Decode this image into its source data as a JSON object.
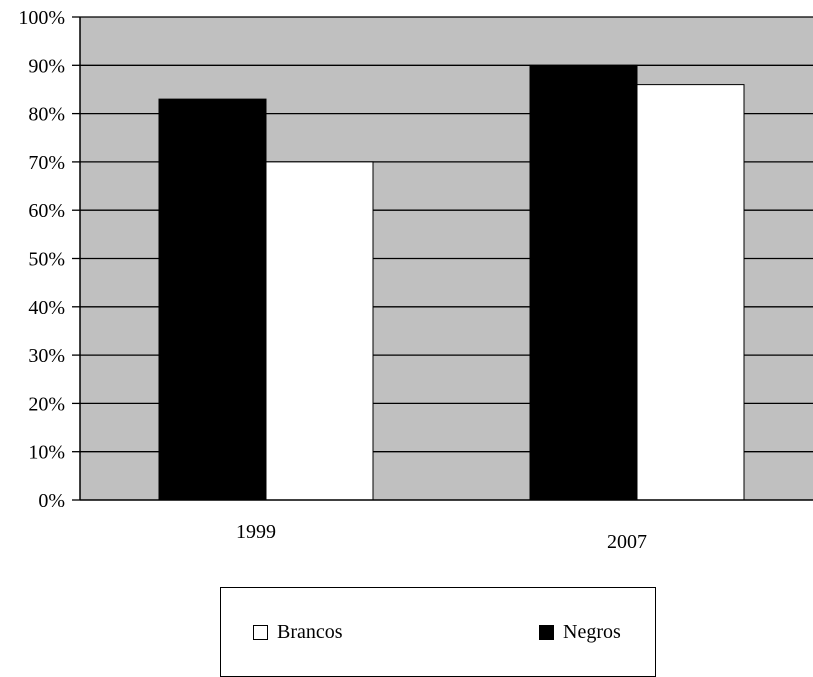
{
  "chart_data": {
    "type": "bar",
    "title": "",
    "xlabel": "",
    "ylabel": "",
    "categories": [
      "1999",
      "2007"
    ],
    "series": [
      {
        "name": "Negros",
        "values": [
          83,
          90
        ],
        "color": "#000000"
      },
      {
        "name": "Brancos",
        "values": [
          70,
          86
        ],
        "color": "#ffffff"
      }
    ],
    "ylim": [
      0,
      100
    ],
    "yticks": [
      "0%",
      "10%",
      "20%",
      "30%",
      "40%",
      "50%",
      "60%",
      "70%",
      "80%",
      "90%",
      "100%"
    ],
    "grid": true,
    "plot_background": "#c0c0c0",
    "legend_position": "bottom-center"
  },
  "legend": {
    "items": [
      {
        "label": "Brancos",
        "color": "#ffffff",
        "icon": "white-square"
      },
      {
        "label": "Negros",
        "color": "#000000",
        "icon": "black-square"
      }
    ]
  }
}
